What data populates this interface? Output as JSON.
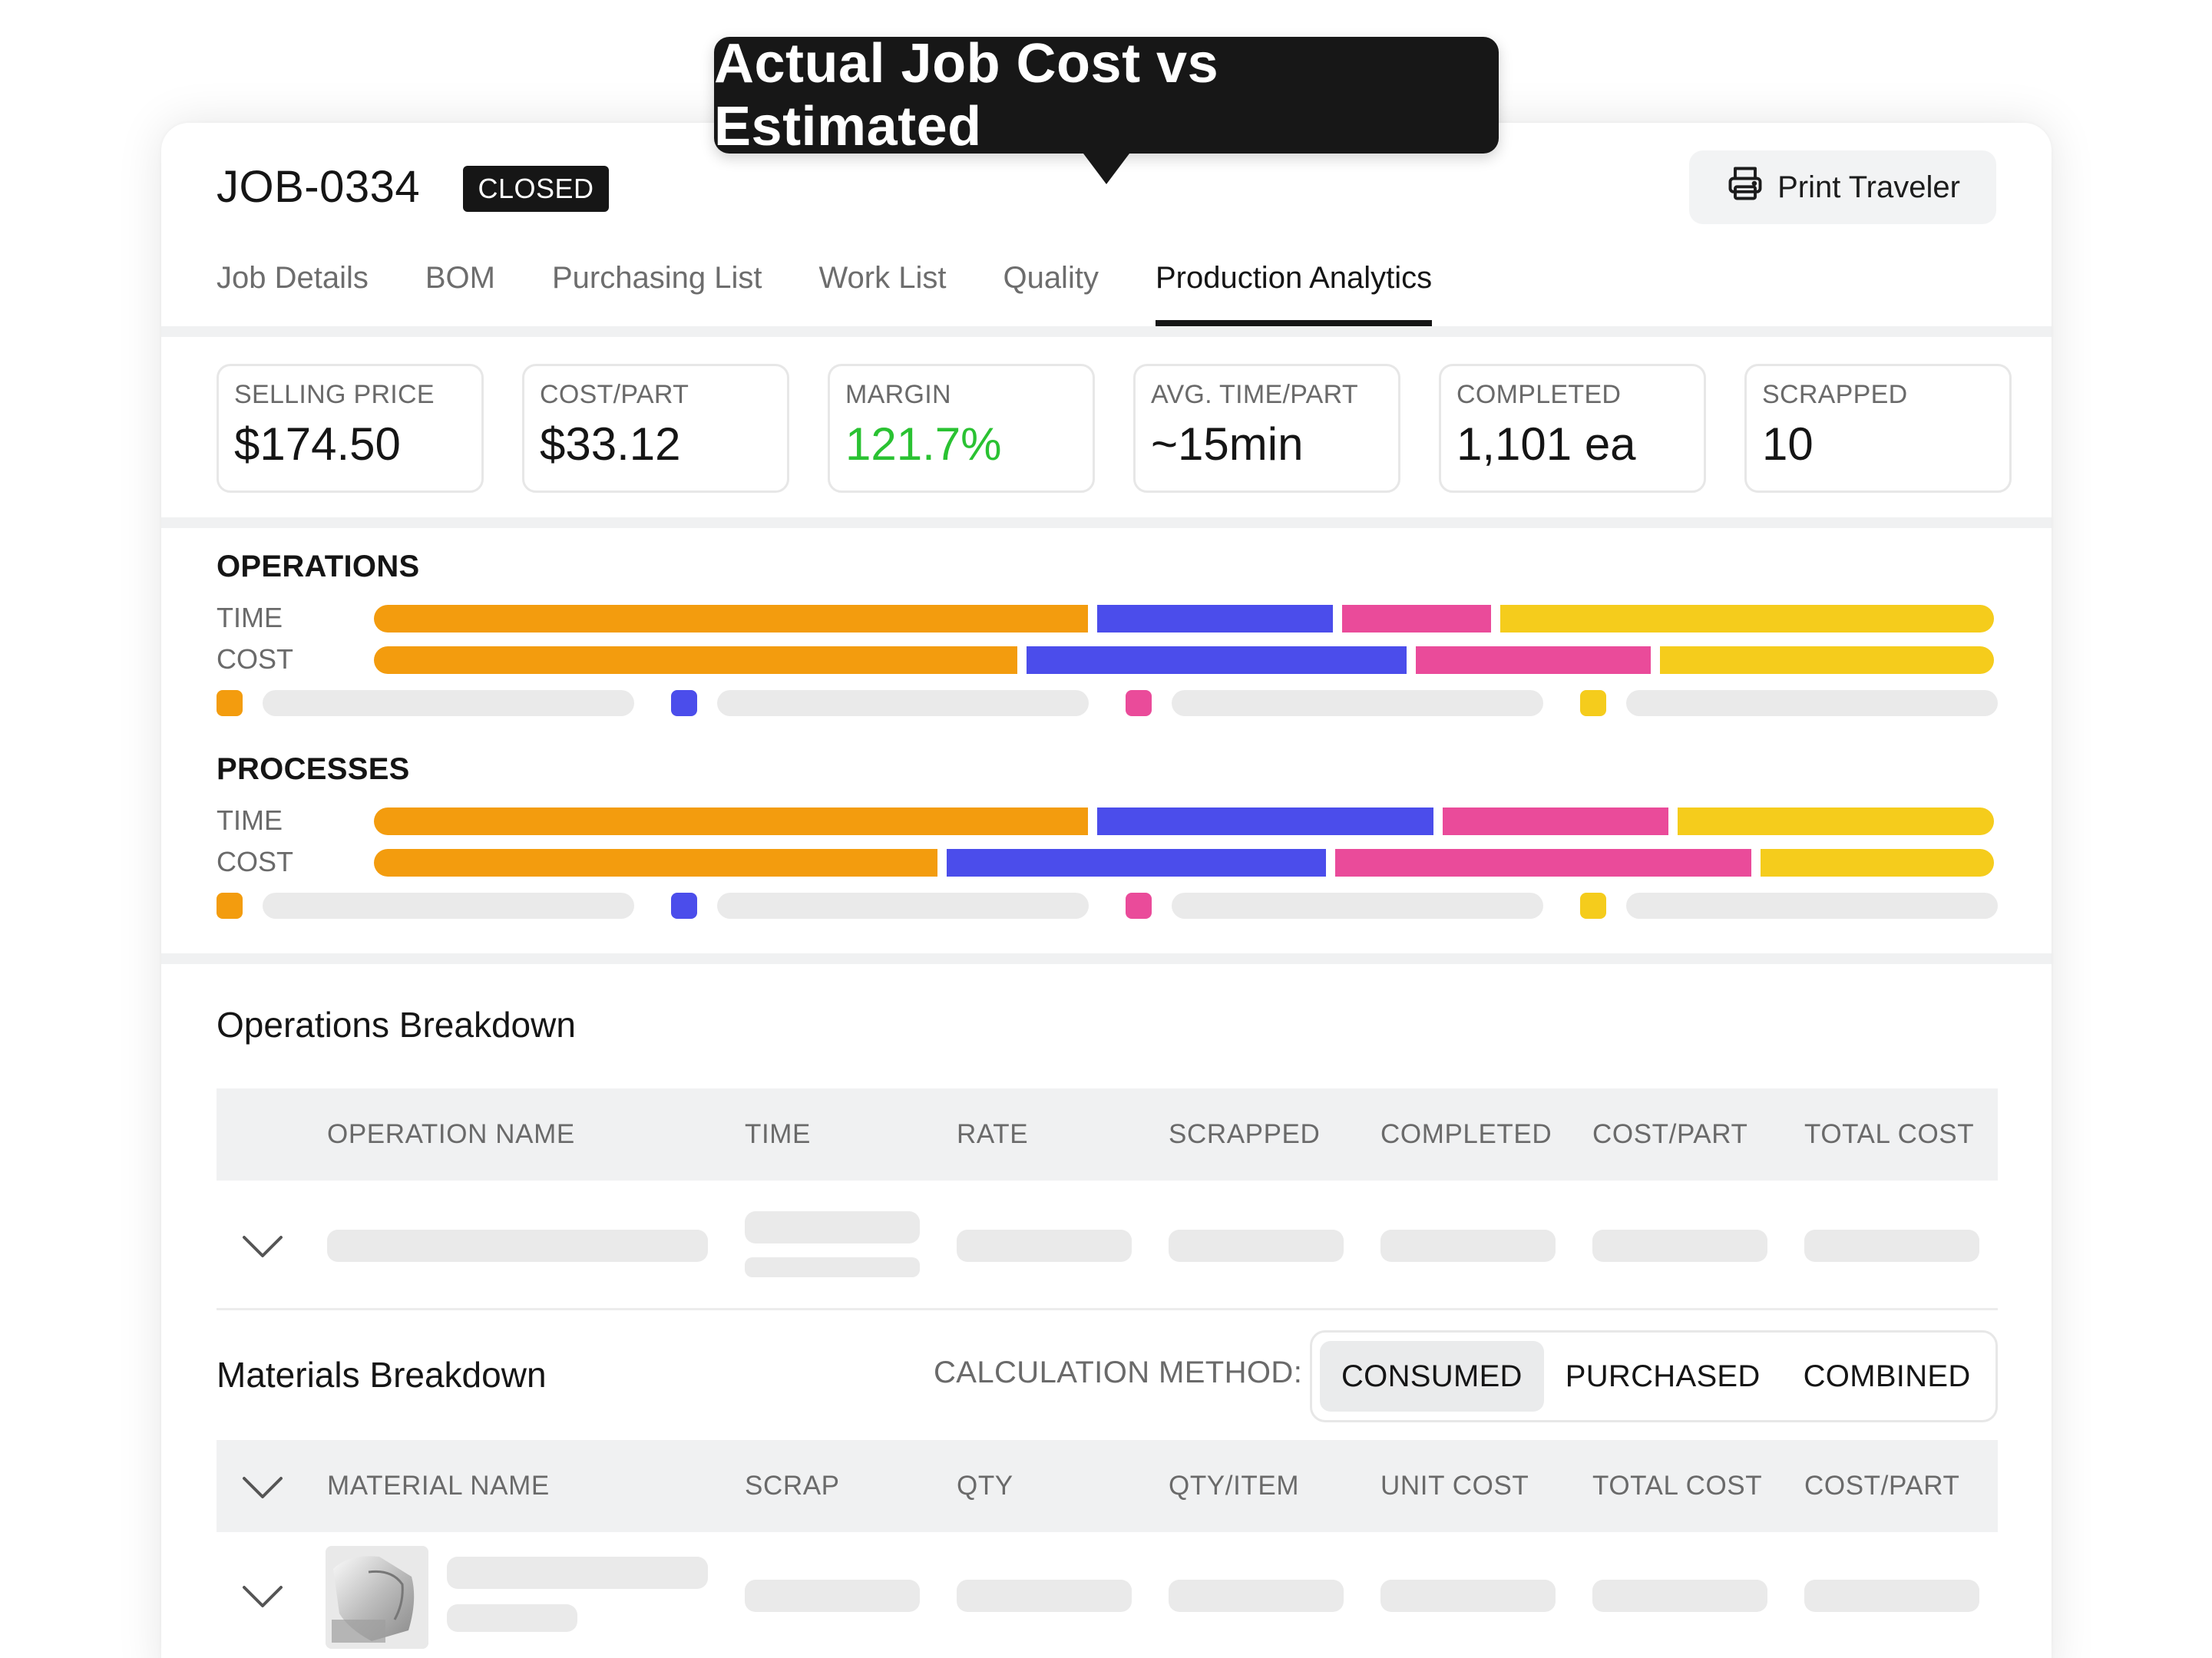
{
  "tooltip": {
    "text": "Actual Job Cost vs Estimated"
  },
  "header": {
    "job_id": "JOB-0334",
    "status": "CLOSED",
    "print_label": "Print Traveler"
  },
  "tabs": [
    {
      "label": "Job Details"
    },
    {
      "label": "BOM"
    },
    {
      "label": "Purchasing List"
    },
    {
      "label": "Work List"
    },
    {
      "label": "Quality"
    },
    {
      "label": "Production Analytics",
      "active": true
    }
  ],
  "stats": [
    {
      "label": "SELLING PRICE",
      "value": "$174.50"
    },
    {
      "label": "COST/PART",
      "value": "$33.12"
    },
    {
      "label": "MARGIN",
      "value": "121.7%",
      "color": "#2ac232"
    },
    {
      "label": "AVG. TIME/PART",
      "value": "~15min"
    },
    {
      "label": "COMPLETED",
      "value": "1,101 ea"
    },
    {
      "label": "SCRAPPED",
      "value": "10"
    }
  ],
  "colors": {
    "orange": "#f39c0e",
    "blue": "#4b4deb",
    "pink": "#ea4b9a",
    "yellow": "#f5cc1c"
  },
  "operations": {
    "title": "OPERATIONS",
    "time_label": "TIME",
    "cost_label": "COST",
    "time_shares": [
      0.44,
      0.145,
      0.092,
      0.304
    ],
    "cost_shares": [
      0.397,
      0.234,
      0.145,
      0.206
    ]
  },
  "processes": {
    "title": "PROCESSES",
    "time_label": "TIME",
    "cost_label": "COST",
    "time_shares": [
      0.44,
      0.207,
      0.139,
      0.195
    ],
    "cost_shares": [
      0.347,
      0.234,
      0.256,
      0.144
    ]
  },
  "ops_breakdown": {
    "title": "Operations Breakdown",
    "columns": [
      "OPERATION NAME",
      "TIME",
      "RATE",
      "SCRAPPED",
      "COMPLETED",
      "COST/PART",
      "TOTAL COST"
    ]
  },
  "materials": {
    "title": "Materials Breakdown",
    "calc_label": "CALCULATION METHOD:",
    "methods": [
      "CONSUMED",
      "PURCHASED",
      "COMBINED"
    ],
    "columns": [
      "MATERIAL NAME",
      "SCRAP",
      "QTY",
      "QTY/ITEM",
      "UNIT COST",
      "TOTAL COST",
      "COST/PART"
    ]
  }
}
